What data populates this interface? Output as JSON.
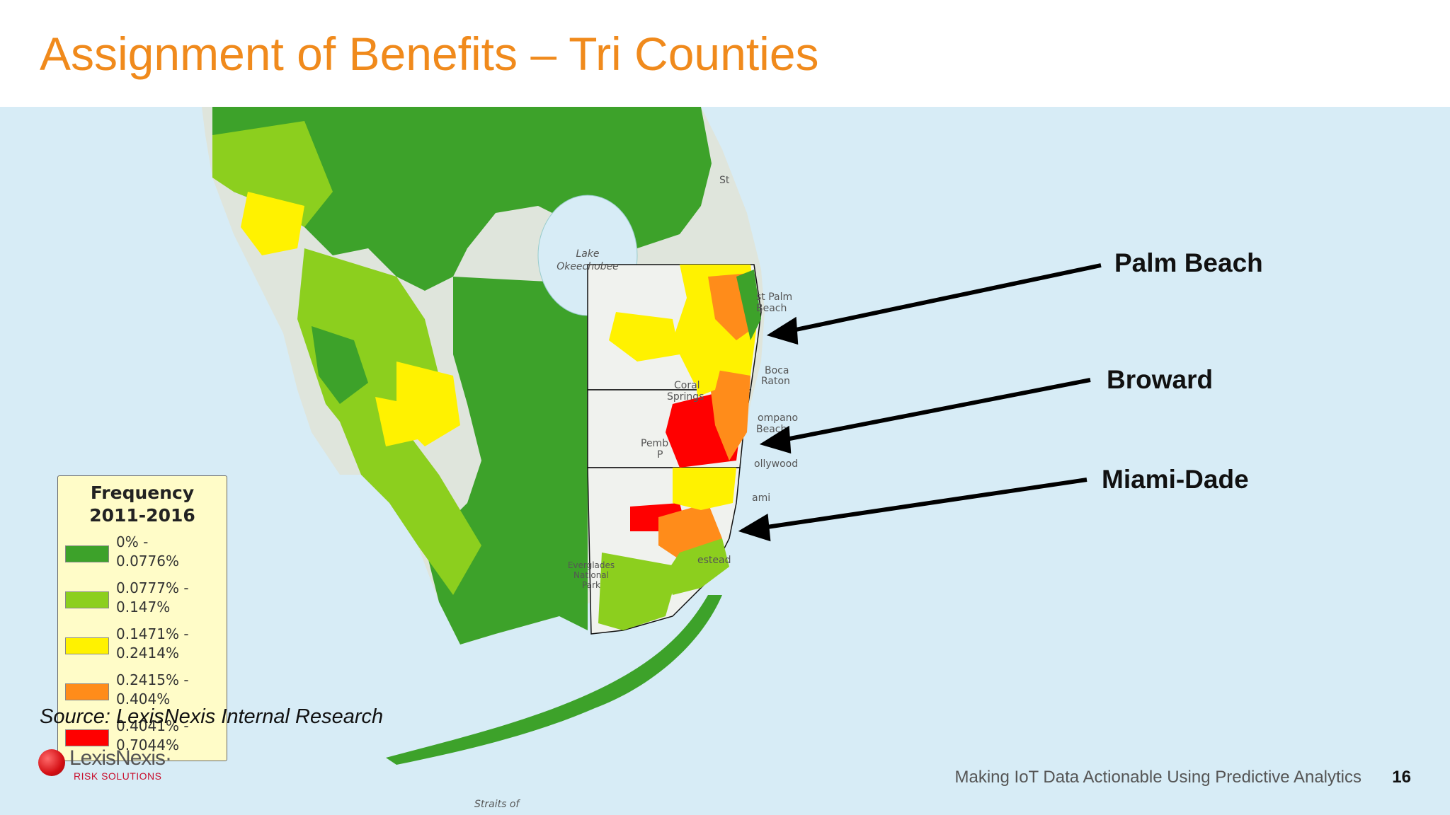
{
  "slide": {
    "title": "Assignment of Benefits – Tri Counties",
    "source": "Source: LexisNexis Internal Research",
    "footer": "Making IoT Data Actionable Using Predictive Analytics",
    "page_number": "16"
  },
  "logo": {
    "name": "LexisNexis·",
    "subtitle": "RISK SOLUTIONS"
  },
  "legend": {
    "title_line1": "Frequency",
    "title_line2": "2011-2016",
    "items": [
      {
        "line1": "0% -",
        "line2": "0.0776%",
        "color": "#3da22a"
      },
      {
        "line1": "0.0777% -",
        "line2": "0.147%",
        "color": "#8ccf1e"
      },
      {
        "line1": "0.1471% -",
        "line2": "0.2414%",
        "color": "#fff200"
      },
      {
        "line1": "0.2415% -",
        "line2": "0.404%",
        "color": "#ff8c1a"
      },
      {
        "line1": "0.4041% -",
        "line2": "0.7044%",
        "color": "#ff0000"
      }
    ]
  },
  "counties": [
    {
      "name": "Palm Beach"
    },
    {
      "name": "Broward"
    },
    {
      "name": "Miami-Dade"
    }
  ],
  "map_labels": {
    "lake_line1": "Lake",
    "lake_line2": "Okeechobee",
    "west_palm_line1": "st Palm",
    "west_palm_line2": "Beach",
    "boca_line1": "Boca",
    "boca_line2": "Raton",
    "pompano_line1": "ompano",
    "pompano_line2": "Beach",
    "coral_line1": "Coral",
    "coral_line2": "Springs",
    "pembroke_line1": "Pemb",
    "pembroke_line2": "P",
    "hollywood": "ollywood",
    "miami": "ami",
    "homestead": "estead",
    "everglades_line1": "Everglades",
    "everglades_line2": "National",
    "everglades_line3": "Park",
    "st": "St",
    "straits": "Straits of"
  },
  "colors": {
    "title": "#f08a1c",
    "water": "#d7ecf6",
    "land_gray": "#dfe5dc"
  }
}
